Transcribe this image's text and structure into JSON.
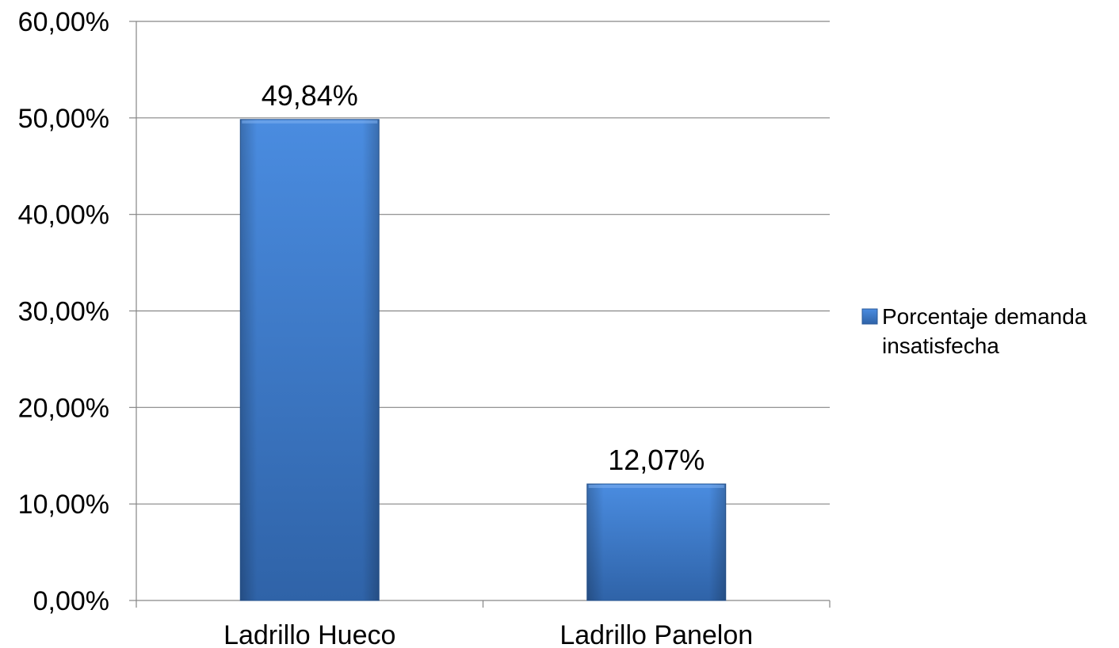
{
  "chart_data": {
    "type": "bar",
    "title": "",
    "xlabel": "",
    "ylabel": "",
    "categories": [
      "Ladrillo Hueco",
      "Ladrillo Panelon"
    ],
    "series": [
      {
        "name": "Porcentaje demanda insatisfecha",
        "values": [
          49.84,
          12.07
        ],
        "value_labels": [
          "49,84%",
          "12,07%"
        ],
        "color": "#3F7FD0"
      }
    ],
    "ylim": [
      0,
      60
    ],
    "yticks": [
      0,
      10,
      20,
      30,
      40,
      50,
      60
    ],
    "ytick_labels": [
      "0,00%",
      "10,00%",
      "20,00%",
      "30,00%",
      "40,00%",
      "50,00%",
      "60,00%"
    ],
    "grid": true,
    "legend_position": "right",
    "legend_lines": [
      "Porcentaje demanda",
      "insatisfecha"
    ]
  }
}
